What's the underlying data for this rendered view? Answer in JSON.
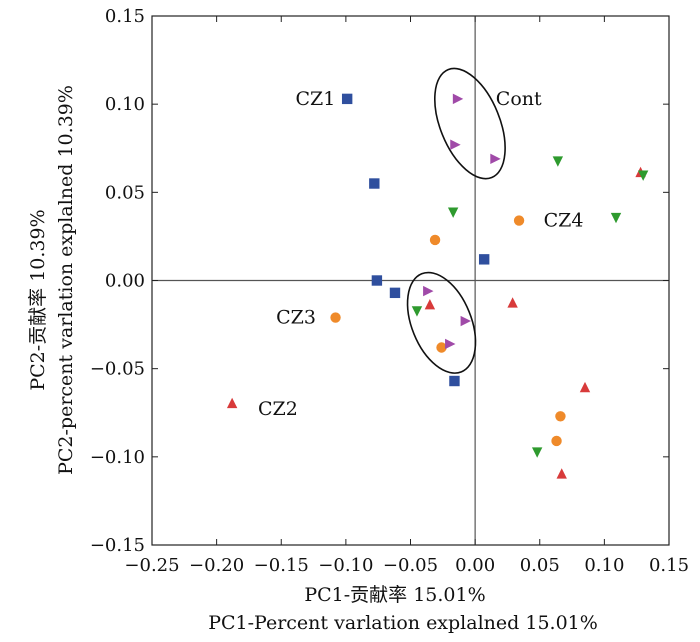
{
  "chart_data": {
    "type": "scatter",
    "xlabel": "PC1-贡献率 15.01%",
    "xlabel2": "PC1-Percent varlation explalned  15.01%",
    "ylabel": "PC2-贡献率 10.39%",
    "ylabel2": "PC2-percent varlation explalned  10.39%",
    "xlim": [
      -0.25,
      0.15
    ],
    "ylim": [
      -0.15,
      0.15
    ],
    "xticks": [
      "−0.25",
      "−0.20",
      "−0.15",
      "−0.10",
      "−0.05",
      "0.00",
      "0.05",
      "0.10",
      "0.15"
    ],
    "xtick_values": [
      -0.25,
      -0.2,
      -0.15,
      -0.1,
      -0.05,
      0.0,
      0.05,
      0.1,
      0.15
    ],
    "yticks": [
      "0.15",
      "0.10",
      "0.05",
      "0.00",
      "−0.05",
      "−0.10",
      "−0.15"
    ],
    "ytick_values": [
      0.15,
      0.1,
      0.05,
      0.0,
      -0.05,
      -0.1,
      -0.15
    ],
    "colors": {
      "square": "#2f4f9e",
      "triangle_up": "#d83a3a",
      "triangle_down": "#2e9a2e",
      "circle": "#ef8a2a",
      "triangle_right": "#a04aa8",
      "zero_line": "#555555"
    },
    "series": [
      {
        "marker": "square",
        "points": [
          [
            -0.099,
            0.103
          ],
          [
            -0.078,
            0.055
          ],
          [
            -0.076,
            0.0
          ],
          [
            -0.062,
            -0.007
          ],
          [
            -0.016,
            -0.057
          ],
          [
            0.007,
            0.012
          ]
        ]
      },
      {
        "marker": "triangle_up",
        "points": [
          [
            -0.188,
            -0.07
          ],
          [
            -0.035,
            -0.014
          ],
          [
            0.029,
            -0.013
          ],
          [
            0.067,
            -0.11
          ],
          [
            0.085,
            -0.061
          ],
          [
            0.128,
            0.061
          ]
        ]
      },
      {
        "marker": "triangle_down",
        "points": [
          [
            -0.017,
            0.039
          ],
          [
            -0.045,
            -0.017
          ],
          [
            0.064,
            0.068
          ],
          [
            0.048,
            -0.097
          ],
          [
            0.109,
            0.036
          ],
          [
            0.13,
            0.06
          ]
        ]
      },
      {
        "marker": "circle",
        "points": [
          [
            -0.108,
            -0.021
          ],
          [
            -0.031,
            0.023
          ],
          [
            -0.026,
            -0.038
          ],
          [
            0.034,
            0.034
          ],
          [
            0.066,
            -0.077
          ],
          [
            0.063,
            -0.091
          ]
        ]
      },
      {
        "marker": "triangle_right",
        "points": [
          [
            -0.014,
            0.103
          ],
          [
            -0.016,
            0.077
          ],
          [
            0.015,
            0.069
          ],
          [
            -0.037,
            -0.006
          ],
          [
            -0.02,
            -0.036
          ],
          [
            -0.008,
            -0.023
          ]
        ]
      }
    ],
    "annotations": [
      {
        "text": "CZ1",
        "x": -0.139,
        "y": 0.103
      },
      {
        "text": "Cont",
        "x": 0.016,
        "y": 0.103
      },
      {
        "text": "CZ4",
        "x": 0.053,
        "y": 0.034
      },
      {
        "text": "CZ3",
        "x": -0.154,
        "y": -0.021
      },
      {
        "text": "CZ2",
        "x": -0.168,
        "y": -0.073
      }
    ],
    "ellipses": [
      {
        "name": "cont-ellipse",
        "cx": -0.004,
        "cy": 0.089,
        "rx": 0.023,
        "ry": 0.033,
        "rotation": -22
      },
      {
        "name": "cz3-ellipse",
        "cx": -0.026,
        "cy": -0.024,
        "rx": 0.023,
        "ry": 0.03,
        "rotation": -22
      }
    ],
    "grid": false,
    "zero_lines": true
  }
}
